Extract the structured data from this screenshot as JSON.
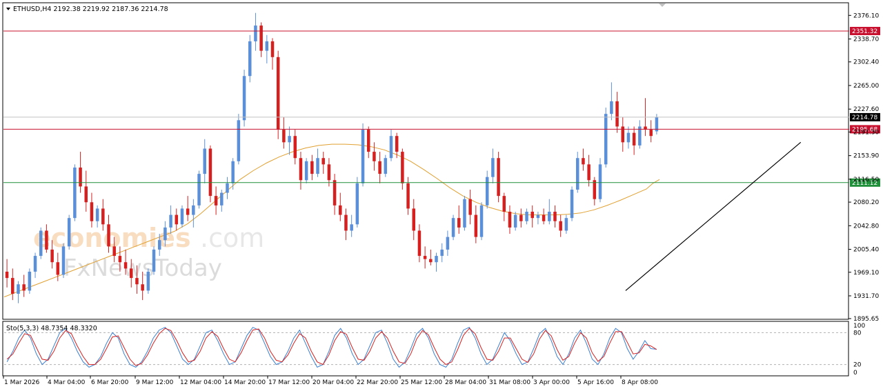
{
  "chart_data": {
    "type": "candlestick",
    "symbol_header": "ETHUSD,H4  2192.38 2219.92 2187.36 2214.78",
    "ylim": [
      1895.65,
      2395
    ],
    "y_ticks": [
      2376.1,
      2338.7,
      2302.4,
      2265.0,
      2227.6,
      2191.3,
      2153.9,
      2116.5,
      2080.2,
      2042.8,
      2005.4,
      1969.1,
      1931.7,
      1895.65
    ],
    "y_tick_labels": [
      "2376.10",
      "2338.70",
      "2302.40",
      "2265.00",
      "2227.60",
      "2191.30",
      "2153.90",
      "2116.50",
      "2080.20",
      "2042.80",
      "2005.40",
      "1969.10",
      "1931.70",
      "1895.65"
    ],
    "x_labels": [
      "1 Mar 2026",
      "4 Mar 04:00",
      "6 Mar 20:00",
      "9 Mar 12:00",
      "12 Mar 04:00",
      "14 Mar 20:00",
      "17 Mar 12:00",
      "20 Mar 04:00",
      "22 Mar 20:00",
      "25 Mar 12:00",
      "28 Mar 04:00",
      "31 Mar 08:00",
      "3 Apr 00:00",
      "5 Apr 16:00",
      "8 Apr 08:00"
    ],
    "candles": [
      [
        1970,
        1990,
        1945,
        1960
      ],
      [
        1960,
        1975,
        1925,
        1935
      ],
      [
        1935,
        1955,
        1920,
        1950
      ],
      [
        1950,
        1965,
        1930,
        1940
      ],
      [
        1940,
        1975,
        1935,
        1970
      ],
      [
        1970,
        2000,
        1960,
        1995
      ],
      [
        1995,
        2040,
        1990,
        2035
      ],
      [
        2035,
        2045,
        2000,
        2005
      ],
      [
        2005,
        2020,
        1975,
        1985
      ],
      [
        1985,
        2000,
        1955,
        1965
      ],
      [
        1965,
        2015,
        1960,
        2010
      ],
      [
        2010,
        2060,
        2005,
        2055
      ],
      [
        2055,
        2140,
        2050,
        2135
      ],
      [
        2135,
        2160,
        2095,
        2105
      ],
      [
        2105,
        2130,
        2065,
        2080
      ],
      [
        2080,
        2095,
        2040,
        2050
      ],
      [
        2050,
        2075,
        2040,
        2070
      ],
      [
        2070,
        2085,
        2035,
        2045
      ],
      [
        2045,
        2060,
        2000,
        2010
      ],
      [
        2010,
        2025,
        1985,
        1995
      ],
      [
        1995,
        2010,
        1970,
        1985
      ],
      [
        1985,
        2005,
        1965,
        1975
      ],
      [
        1975,
        1990,
        1945,
        1960
      ],
      [
        1960,
        1980,
        1935,
        1950
      ],
      [
        1950,
        1970,
        1925,
        1940
      ],
      [
        1940,
        1975,
        1935,
        1970
      ],
      [
        1970,
        2010,
        1965,
        2005
      ],
      [
        2005,
        2030,
        1995,
        2020
      ],
      [
        2020,
        2050,
        2010,
        2040
      ],
      [
        2040,
        2075,
        2030,
        2060
      ],
      [
        2060,
        2070,
        2035,
        2045
      ],
      [
        2045,
        2075,
        2040,
        2070
      ],
      [
        2070,
        2090,
        2050,
        2060
      ],
      [
        2060,
        2085,
        2040,
        2075
      ],
      [
        2075,
        2130,
        2070,
        2125
      ],
      [
        2125,
        2180,
        2110,
        2165
      ],
      [
        2165,
        2170,
        2080,
        2090
      ],
      [
        2090,
        2105,
        2060,
        2075
      ],
      [
        2075,
        2100,
        2065,
        2095
      ],
      [
        2095,
        2120,
        2085,
        2110
      ],
      [
        2110,
        2150,
        2100,
        2145
      ],
      [
        2145,
        2220,
        2140,
        2210
      ],
      [
        2210,
        2290,
        2200,
        2280
      ],
      [
        2280,
        2345,
        2270,
        2335
      ],
      [
        2335,
        2380,
        2320,
        2360
      ],
      [
        2360,
        2365,
        2310,
        2320
      ],
      [
        2320,
        2345,
        2300,
        2335
      ],
      [
        2335,
        2340,
        2290,
        2310
      ],
      [
        2310,
        2320,
        2180,
        2195
      ],
      [
        2195,
        2215,
        2165,
        2175
      ],
      [
        2175,
        2200,
        2155,
        2185
      ],
      [
        2185,
        2195,
        2140,
        2150
      ],
      [
        2150,
        2160,
        2100,
        2115
      ],
      [
        2115,
        2150,
        2110,
        2145
      ],
      [
        2145,
        2155,
        2115,
        2125
      ],
      [
        2125,
        2165,
        2120,
        2150
      ],
      [
        2150,
        2160,
        2125,
        2140
      ],
      [
        2140,
        2150,
        2105,
        2115
      ],
      [
        2115,
        2125,
        2060,
        2075
      ],
      [
        2075,
        2095,
        2050,
        2060
      ],
      [
        2060,
        2070,
        2020,
        2035
      ],
      [
        2035,
        2060,
        2025,
        2045
      ],
      [
        2045,
        2120,
        2040,
        2110
      ],
      [
        2110,
        2205,
        2105,
        2195
      ],
      [
        2195,
        2200,
        2150,
        2160
      ],
      [
        2160,
        2175,
        2130,
        2145
      ],
      [
        2145,
        2160,
        2110,
        2125
      ],
      [
        2125,
        2155,
        2120,
        2150
      ],
      [
        2150,
        2195,
        2145,
        2185
      ],
      [
        2185,
        2190,
        2150,
        2160
      ],
      [
        2160,
        2165,
        2100,
        2110
      ],
      [
        2110,
        2120,
        2060,
        2070
      ],
      [
        2070,
        2085,
        2020,
        2035
      ],
      [
        2035,
        2045,
        1985,
        1995
      ],
      [
        1995,
        2010,
        1975,
        1990
      ],
      [
        1990,
        2005,
        1980,
        1985
      ],
      [
        1985,
        2000,
        1970,
        1995
      ],
      [
        1995,
        2015,
        1985,
        2005
      ],
      [
        2005,
        2035,
        1995,
        2025
      ],
      [
        2025,
        2060,
        2020,
        2055
      ],
      [
        2055,
        2075,
        2030,
        2040
      ],
      [
        2040,
        2090,
        2035,
        2085
      ],
      [
        2085,
        2100,
        2045,
        2060
      ],
      [
        2060,
        2075,
        2015,
        2025
      ],
      [
        2025,
        2080,
        2020,
        2075
      ],
      [
        2075,
        2130,
        2070,
        2120
      ],
      [
        2120,
        2165,
        2110,
        2150
      ],
      [
        2150,
        2160,
        2080,
        2090
      ],
      [
        2090,
        2095,
        2050,
        2065
      ],
      [
        2065,
        2075,
        2030,
        2040
      ],
      [
        2040,
        2065,
        2035,
        2060
      ],
      [
        2060,
        2070,
        2040,
        2050
      ],
      [
        2050,
        2070,
        2045,
        2065
      ],
      [
        2065,
        2075,
        2040,
        2055
      ],
      [
        2055,
        2065,
        2045,
        2060
      ],
      [
        2060,
        2070,
        2045,
        2050
      ],
      [
        2050,
        2085,
        2045,
        2065
      ],
      [
        2065,
        2075,
        2040,
        2050
      ],
      [
        2050,
        2060,
        2025,
        2035
      ],
      [
        2035,
        2060,
        2030,
        2055
      ],
      [
        2055,
        2105,
        2050,
        2100
      ],
      [
        2100,
        2160,
        2095,
        2150
      ],
      [
        2150,
        2165,
        2130,
        2140
      ],
      [
        2140,
        2155,
        2105,
        2115
      ],
      [
        2115,
        2120,
        2075,
        2085
      ],
      [
        2085,
        2150,
        2080,
        2140
      ],
      [
        2140,
        2230,
        2135,
        2220
      ],
      [
        2220,
        2270,
        2210,
        2240
      ],
      [
        2240,
        2255,
        2190,
        2200
      ],
      [
        2200,
        2215,
        2160,
        2175
      ],
      [
        2175,
        2200,
        2165,
        2190
      ],
      [
        2190,
        2200,
        2155,
        2170
      ],
      [
        2170,
        2210,
        2165,
        2200
      ],
      [
        2200,
        2245,
        2185,
        2195
      ],
      [
        2195,
        2210,
        2175,
        2185
      ],
      [
        2192.38,
        2219.92,
        2187.36,
        2214.78
      ]
    ],
    "ma": [
      1930,
      1938,
      1946,
      1954,
      1962,
      1970,
      1978,
      1986,
      1994,
      2002,
      2010,
      2018,
      2026,
      2034,
      2046,
      2062,
      2080,
      2098,
      2116,
      2130,
      2142,
      2152,
      2160,
      2166,
      2170,
      2172,
      2172,
      2171,
      2168,
      2163,
      2155,
      2145,
      2132,
      2118,
      2103,
      2090,
      2080,
      2072,
      2066,
      2062,
      2060,
      2060,
      2060,
      2061,
      2063,
      2068,
      2075,
      2083,
      2092,
      2101,
      2110,
      2116
    ],
    "ma_x_fraction": [
      0.0,
      0.02,
      0.04,
      0.06,
      0.08,
      0.1,
      0.12,
      0.14,
      0.16,
      0.18,
      0.2,
      0.22,
      0.24,
      0.26,
      0.28,
      0.3,
      0.32,
      0.34,
      0.36,
      0.38,
      0.4,
      0.42,
      0.44,
      0.46,
      0.48,
      0.5,
      0.52,
      0.54,
      0.56,
      0.58,
      0.6,
      0.62,
      0.64,
      0.66,
      0.68,
      0.7,
      0.72,
      0.74,
      0.76,
      0.78,
      0.8,
      0.82,
      0.84,
      0.86,
      0.88,
      0.9,
      0.92,
      0.94,
      0.96,
      0.98,
      0.99,
      1.0
    ],
    "hlines": [
      {
        "value": 2351.32,
        "label": "2351.32",
        "color": "#c8102e"
      },
      {
        "value": 2195.68,
        "label": "2195.68",
        "color": "#c8102e"
      },
      {
        "value": 2111.12,
        "label": "2111.12",
        "color": "#1f8f3a"
      }
    ],
    "current_price": {
      "value": 2214.78,
      "label": "2214.78",
      "color": "#000000"
    },
    "trendline": {
      "from": [
        110,
        1940
      ],
      "to": [
        141,
        2175
      ]
    },
    "colors": {
      "bull": "#5b8fd8",
      "bear": "#d62020",
      "ma": "#e0a030",
      "sto_main": "#3a7fd0",
      "sto_signal": "#d62020"
    },
    "stochastic": {
      "header": "Sto(5,3,3) 48.7354 48.3320",
      "levels": [
        20,
        80
      ],
      "tick_labels": [
        "100",
        "80",
        "20",
        "0"
      ],
      "main": [
        25,
        45,
        70,
        85,
        70,
        40,
        20,
        30,
        55,
        80,
        88,
        70,
        45,
        25,
        15,
        20,
        35,
        60,
        80,
        70,
        40,
        20,
        15,
        25,
        45,
        70,
        85,
        90,
        80,
        55,
        30,
        20,
        30,
        55,
        80,
        85,
        65,
        40,
        20,
        25,
        50,
        75,
        90,
        85,
        60,
        35,
        20,
        25,
        45,
        70,
        85,
        60,
        35,
        15,
        20,
        45,
        75,
        88,
        70,
        40,
        20,
        30,
        55,
        80,
        85,
        60,
        30,
        15,
        25,
        50,
        78,
        88,
        70,
        40,
        20,
        15,
        30,
        60,
        85,
        90,
        70,
        40,
        20,
        30,
        55,
        80,
        65,
        40,
        20,
        25,
        50,
        78,
        88,
        65,
        35,
        20,
        40,
        70,
        85,
        60,
        30,
        20,
        40,
        70,
        88,
        80,
        50,
        30,
        45,
        65,
        50,
        48.7
      ],
      "signal": [
        30,
        40,
        60,
        78,
        75,
        52,
        30,
        28,
        45,
        70,
        84,
        78,
        55,
        35,
        20,
        20,
        30,
        50,
        72,
        74,
        52,
        30,
        18,
        22,
        38,
        60,
        78,
        88,
        84,
        65,
        42,
        25,
        28,
        45,
        70,
        82,
        73,
        50,
        30,
        25,
        42,
        65,
        85,
        87,
        70,
        45,
        28,
        25,
        38,
        60,
        78,
        70,
        45,
        25,
        20,
        38,
        65,
        82,
        77,
        52,
        30,
        28,
        45,
        70,
        82,
        70,
        45,
        25,
        22,
        40,
        68,
        84,
        76,
        52,
        30,
        20,
        25,
        48,
        75,
        88,
        78,
        52,
        30,
        28,
        45,
        70,
        70,
        50,
        30,
        24,
        40,
        68,
        84,
        74,
        48,
        28,
        35,
        60,
        80,
        70,
        42,
        26,
        35,
        60,
        82,
        82,
        62,
        40,
        42,
        58,
        55,
        48.3
      ]
    }
  }
}
